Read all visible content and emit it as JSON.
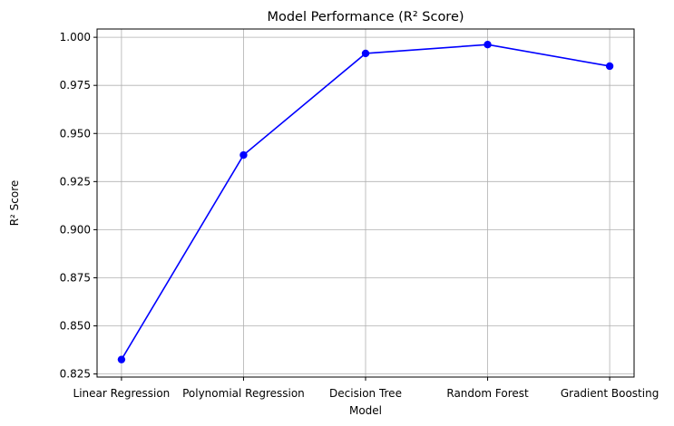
{
  "chart_data": {
    "type": "line",
    "title": "Model Performance (R² Score)",
    "xlabel": "Model",
    "ylabel": "R² Score",
    "categories": [
      "Linear Regression",
      "Polynomial Regression",
      "Decision Tree",
      "Random Forest",
      "Gradient Boosting"
    ],
    "series": [
      {
        "values": [
          0.8325,
          0.9388,
          0.9916,
          0.9962,
          0.985
        ]
      }
    ],
    "ylim": [
      0.8234,
      1.0043
    ],
    "yticks": [
      0.825,
      0.85,
      0.875,
      0.9,
      0.925,
      0.95,
      0.975,
      1.0
    ],
    "ytick_labels": [
      "0.825",
      "0.850",
      "0.875",
      "0.900",
      "0.925",
      "0.950",
      "0.975",
      "1.000"
    ],
    "grid": true,
    "marker": "circle",
    "colors": {
      "line": "#0000ff",
      "grid": "#b0b0b0",
      "axes": "#000000"
    }
  }
}
